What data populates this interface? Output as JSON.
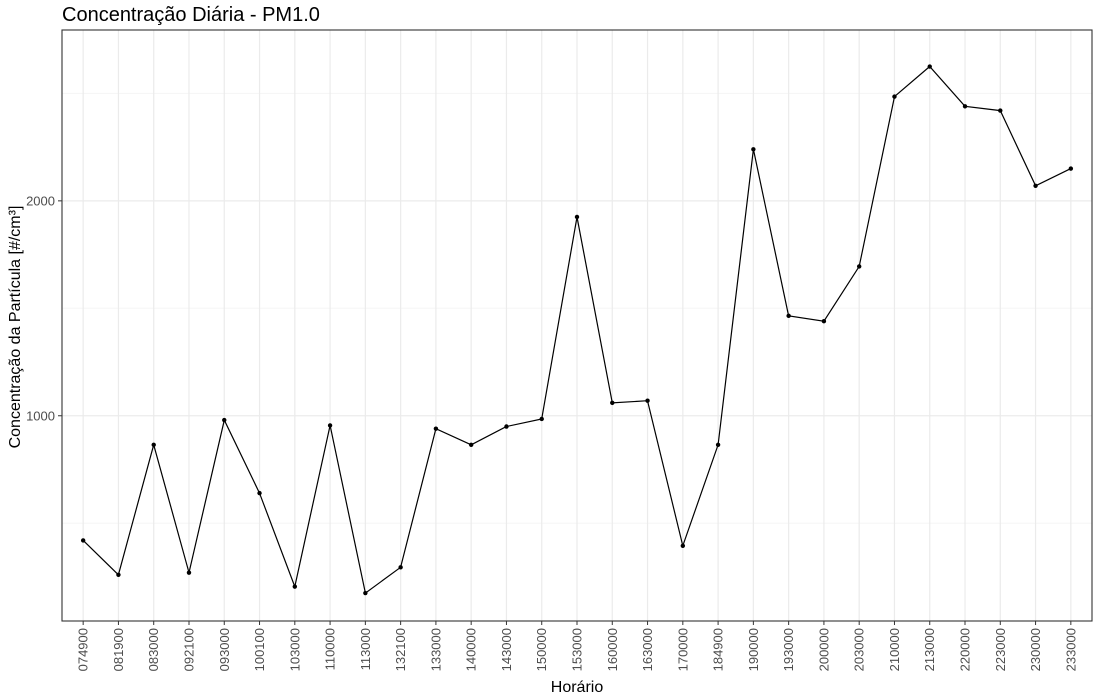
{
  "chart_data": {
    "type": "line",
    "title": "Concentração Diária - PM1.0",
    "xlabel": "Horário",
    "ylabel": "Concentração da Partícula [#/cm³]",
    "categories": [
      "074900",
      "081900",
      "083000",
      "092100",
      "093000",
      "100100",
      "103000",
      "110000",
      "113000",
      "132100",
      "133000",
      "140000",
      "143000",
      "150000",
      "153000",
      "160000",
      "163000",
      "170000",
      "184900",
      "190000",
      "193000",
      "200000",
      "203000",
      "210000",
      "213000",
      "220000",
      "223000",
      "230000",
      "233000"
    ],
    "series": [
      {
        "values": [
          420,
          260,
          865,
          270,
          980,
          640,
          205,
          955,
          175,
          295,
          940,
          865,
          950,
          985,
          1925,
          1060,
          1070,
          395,
          865,
          2240,
          1465,
          1440,
          1695,
          2485,
          2625,
          2440,
          2420,
          2070,
          2150
        ]
      }
    ],
    "yticks": [
      1000,
      2000
    ],
    "ylim": [
      45,
      2795
    ],
    "grid": true,
    "legend": "none",
    "colors": {
      "line": "#000000",
      "grid_major": "#ebebeb",
      "grid_minor": "#f5f5f5",
      "panel_border": "#333333"
    }
  }
}
